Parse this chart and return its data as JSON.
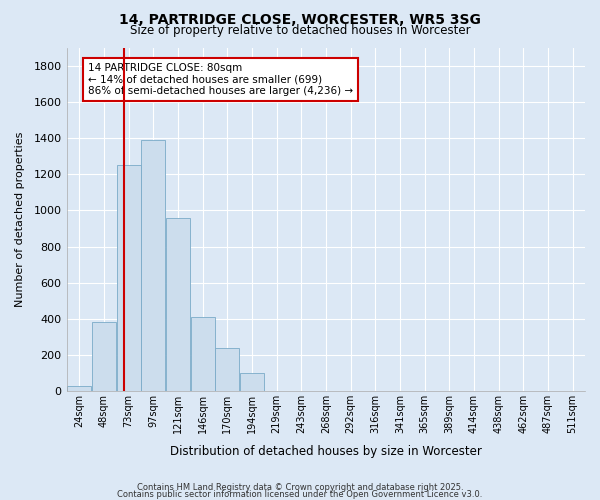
{
  "title": "14, PARTRIDGE CLOSE, WORCESTER, WR5 3SG",
  "subtitle": "Size of property relative to detached houses in Worcester",
  "xlabel": "Distribution of detached houses by size in Worcester",
  "ylabel": "Number of detached properties",
  "bar_color": "#ccdded",
  "bar_edge_color": "#7aaac8",
  "background_color": "#dce8f5",
  "grid_color": "#ffffff",
  "annotation_line_color": "#cc0000",
  "annotation_text": "14 PARTRIDGE CLOSE: 80sqm\n← 14% of detached houses are smaller (699)\n86% of semi-detached houses are larger (4,236) →",
  "footer_line1": "Contains HM Land Registry data © Crown copyright and database right 2025.",
  "footer_line2": "Contains public sector information licensed under the Open Government Licence v3.0.",
  "categories": [
    "24sqm",
    "48sqm",
    "73sqm",
    "97sqm",
    "121sqm",
    "146sqm",
    "170sqm",
    "194sqm",
    "219sqm",
    "243sqm",
    "268sqm",
    "292sqm",
    "316sqm",
    "341sqm",
    "365sqm",
    "389sqm",
    "414sqm",
    "438sqm",
    "462sqm",
    "487sqm",
    "511sqm"
  ],
  "values": [
    30,
    380,
    1250,
    1390,
    960,
    410,
    240,
    100,
    0,
    0,
    0,
    0,
    0,
    0,
    0,
    0,
    0,
    0,
    0,
    0,
    0
  ],
  "ylim": [
    0,
    1900
  ],
  "yticks": [
    0,
    200,
    400,
    600,
    800,
    1000,
    1200,
    1400,
    1600,
    1800
  ],
  "fig_width": 6.0,
  "fig_height": 5.0,
  "dpi": 100
}
